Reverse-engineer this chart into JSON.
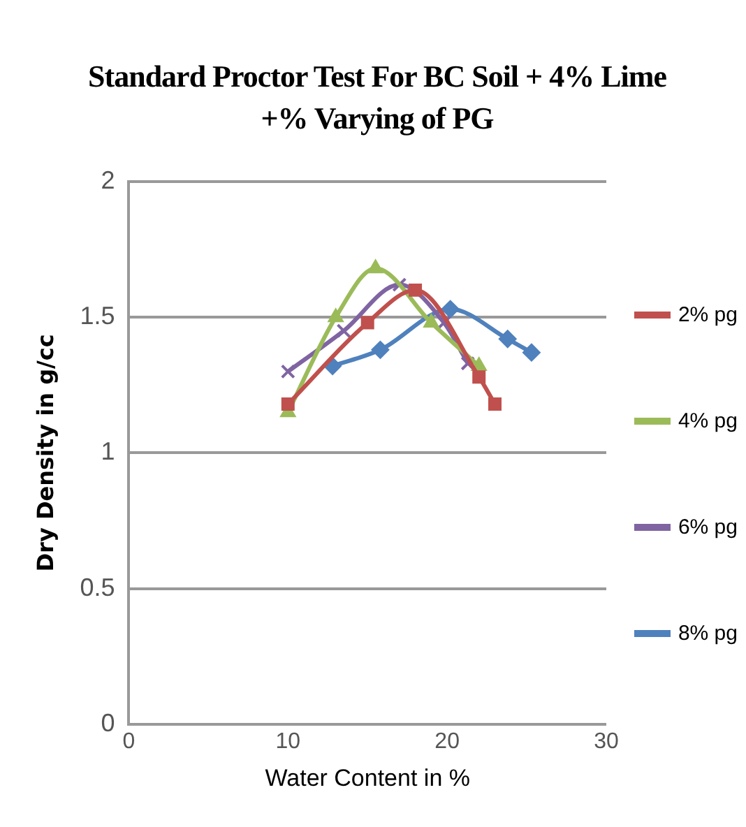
{
  "chart_data": {
    "type": "line",
    "title": "Standard Proctor Test For BC Soil + 4% Lime +% Varying of PG",
    "xlabel": "Water Content in %",
    "ylabel": "Dry Density in g/cc",
    "xlim": [
      0,
      30
    ],
    "xticks": [
      0,
      10,
      20,
      30
    ],
    "ylim": [
      0,
      2
    ],
    "yticks": [
      0,
      0.5,
      1,
      1.5,
      2
    ],
    "grid": "y",
    "legend": "right",
    "series": [
      {
        "name": "2% pg",
        "color": "#c0504d",
        "marker": "square",
        "x": [
          10,
          15,
          18,
          22,
          23
        ],
        "values": [
          1.18,
          1.48,
          1.6,
          1.28,
          1.18
        ]
      },
      {
        "name": "4% pg",
        "color": "#9bbb59",
        "marker": "triangle",
        "x": [
          10,
          13,
          15.5,
          19,
          22
        ],
        "values": [
          1.15,
          1.5,
          1.68,
          1.48,
          1.32
        ]
      },
      {
        "name": "6% pg",
        "color": "#8064a2",
        "marker": "cross",
        "x": [
          10,
          13.5,
          17,
          19.8,
          21.3
        ],
        "values": [
          1.3,
          1.45,
          1.62,
          1.48,
          1.33
        ]
      },
      {
        "name": "8% pg",
        "color": "#4f81bd",
        "marker": "diamond",
        "x": [
          12.8,
          15.8,
          20.2,
          23.8,
          25.3
        ],
        "values": [
          1.32,
          1.38,
          1.53,
          1.42,
          1.37
        ]
      }
    ]
  }
}
